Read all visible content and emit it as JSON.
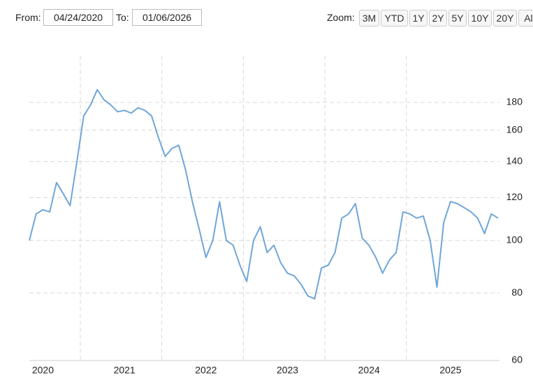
{
  "toolbar": {
    "from_label": "From:",
    "from_value": "04/24/2020",
    "to_label": "To:",
    "to_value": "01/06/2026",
    "zoom_label": "Zoom:",
    "zoom_buttons": [
      "3M",
      "YTD",
      "1Y",
      "2Y",
      "5Y",
      "10Y",
      "20Y",
      "All"
    ]
  },
  "chart_data": {
    "type": "line",
    "log_scale": true,
    "grid": true,
    "categories": [
      null,
      null,
      "2020",
      null,
      null,
      null,
      null,
      null,
      null,
      null,
      null,
      null,
      null,
      null,
      "2021",
      null,
      null,
      null,
      null,
      null,
      null,
      null,
      null,
      null,
      null,
      null,
      "2022",
      null,
      null,
      null,
      null,
      null,
      null,
      null,
      null,
      null,
      null,
      null,
      "2023",
      null,
      null,
      null,
      null,
      null,
      null,
      null,
      null,
      null,
      null,
      null,
      "2024",
      null,
      null,
      null,
      null,
      null,
      null,
      null,
      null,
      null,
      null,
      null,
      "2025",
      null,
      null,
      null,
      null,
      null,
      null,
      null
    ],
    "series": [
      {
        "color": "#6fa6d8",
        "values": [
          100,
          112,
          114,
          113,
          128,
          122,
          116,
          140,
          170,
          178,
          190,
          182,
          178,
          173,
          174,
          172,
          176,
          174,
          170,
          155,
          143,
          148,
          150,
          135,
          118,
          105,
          93,
          100,
          118,
          100,
          98,
          90,
          84,
          100,
          106,
          95,
          98,
          91,
          87,
          86,
          83,
          79,
          78,
          89,
          90,
          95,
          110,
          112,
          117,
          101,
          98,
          93,
          87,
          92,
          95,
          113,
          112,
          110,
          111,
          100,
          82,
          108,
          118,
          117,
          115,
          113,
          110,
          103,
          112,
          110
        ]
      }
    ],
    "ylim": [
      60,
      210
    ],
    "yticks": [
      60,
      80,
      100,
      120,
      140,
      160,
      180
    ]
  }
}
